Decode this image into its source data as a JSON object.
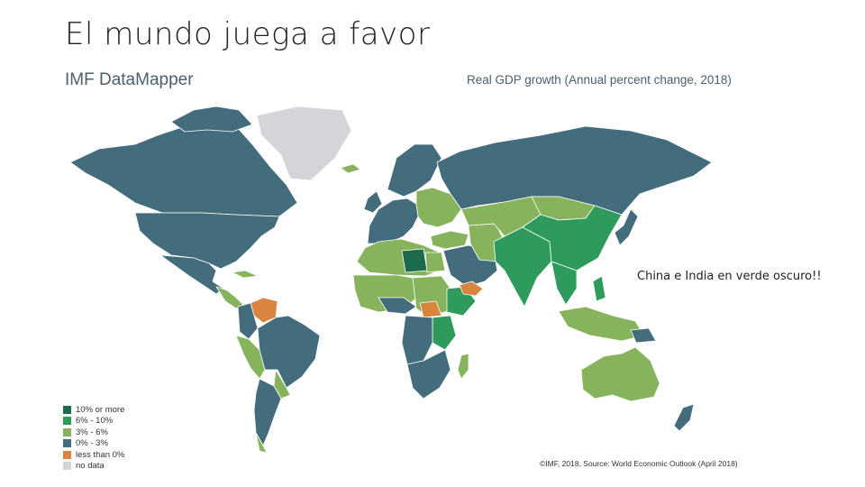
{
  "slide": {
    "title": "El mundo juega a favor"
  },
  "map": {
    "brand": "IMF DataMapper",
    "title": "Real GDP growth (Annual percent change, 2018)",
    "credit": "©IMF, 2018, Source: World Economic Outlook (April 2018)",
    "colors": {
      "ten_plus": "#1b6b4c",
      "six_ten": "#2e9a5c",
      "three_six": "#86b35c",
      "zero_three": "#436c7c",
      "negative": "#d9843f",
      "no_data": "#d3d5d9"
    },
    "legend": [
      {
        "label": "10% or more",
        "color": "#1b6b4c"
      },
      {
        "label": "6% - 10%",
        "color": "#2e9a5c"
      },
      {
        "label": "3% - 6%",
        "color": "#86b35c"
      },
      {
        "label": "0% - 3%",
        "color": "#436c7c"
      },
      {
        "label": "less than 0%",
        "color": "#d9843f"
      },
      {
        "label": "no data",
        "color": "#d3d5d9"
      }
    ]
  },
  "annotation": {
    "text": "China e India en verde oscuro!!"
  }
}
